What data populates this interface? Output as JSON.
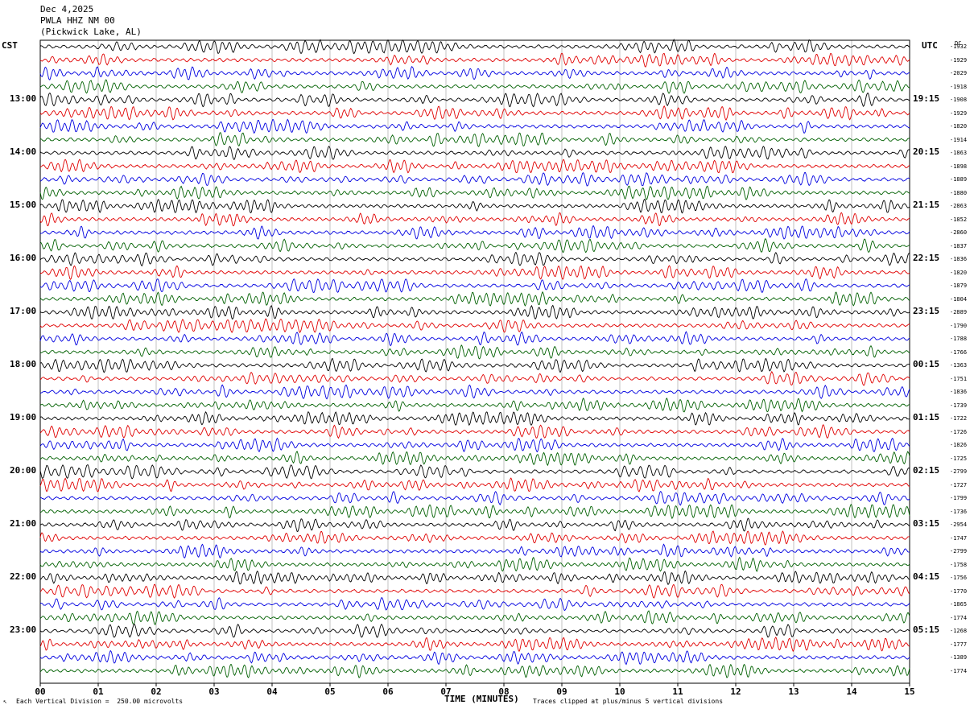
{
  "header": {
    "date": "Dec 4,2025",
    "station": "PWLA HHZ NM 00",
    "location": "(Pickwick Lake, AL)"
  },
  "left_axis_title": "CST",
  "right_axis_title": "UTC",
  "dc_title": "DC",
  "chart_data": {
    "type": "line",
    "title": "PWLA HHZ NM 00 helicorder",
    "xlabel": "TIME (MINUTES)",
    "x_ticks": [
      "00",
      "01",
      "02",
      "03",
      "04",
      "05",
      "06",
      "07",
      "08",
      "09",
      "10",
      "11",
      "12",
      "13",
      "14",
      "15"
    ],
    "xlim": [
      0,
      15
    ],
    "left_time_labels": [
      "13:00",
      "14:00",
      "15:00",
      "16:00",
      "17:00",
      "18:00",
      "19:00",
      "20:00",
      "21:00",
      "22:00",
      "23:00"
    ],
    "right_time_labels": [
      "19:15",
      "20:15",
      "21:15",
      "22:15",
      "23:15",
      "00:15",
      "01:15",
      "02:15",
      "03:15",
      "04:15",
      "05:15"
    ],
    "trace_colors": [
      "#000000",
      "#e00000",
      "#0000e0",
      "#006000"
    ],
    "dc_offsets": [
      "-1932",
      "-1929",
      "-2029",
      "-1918",
      "-1908",
      "-1929",
      "-1820",
      "-1914",
      "-1863",
      "-1898",
      "-1889",
      "-1880",
      "-2863",
      "-1852",
      "-2860",
      "-1837",
      "-1836",
      "-1820",
      "-1879",
      "-1804",
      "-2889",
      "-1790",
      "-1788",
      "-1766",
      "-1363",
      "-1751",
      "-1836",
      "-1739",
      "-1722",
      "-1726",
      "-1826",
      "-1725",
      "-2799",
      "-1727",
      "-1799",
      "-1736",
      "-2954",
      "-1747",
      "-2799",
      "-1758",
      "-1756",
      "-1770",
      "-1865",
      "-1774",
      "-1268",
      "-1777",
      "-1389",
      "-1774"
    ],
    "footer_scale": "Each Vertical Division =  250.00 microvolts",
    "footer_clip": "Traces clipped at plus/minus 5 vertical divisions"
  }
}
